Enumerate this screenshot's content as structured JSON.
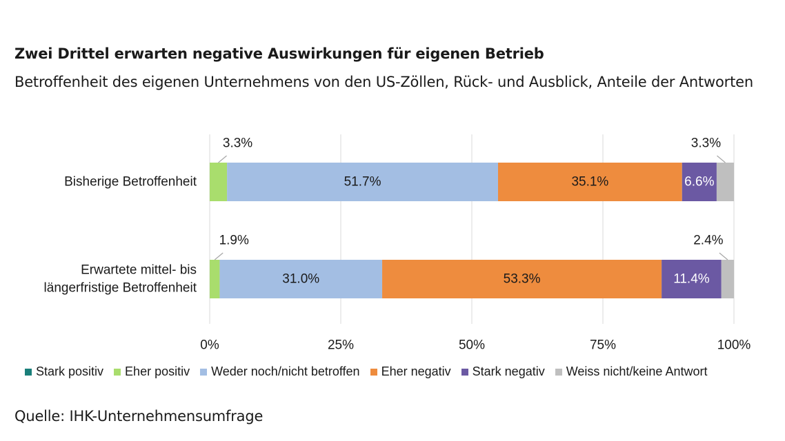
{
  "title": "Zwei Drittel erwarten negative Auswirkungen für eigenen Betrieb",
  "subtitle": "Betroffenheit des eigenen Unternehmens von den US-Zöllen, Rück- und Ausblick, Anteile der Antworten",
  "source": "Quelle: IHK-Unternehmensumfrage",
  "chart_data": {
    "type": "bar",
    "orientation": "horizontal",
    "stacked": true,
    "xlim": [
      0,
      100
    ],
    "x_ticks": [
      0,
      25,
      50,
      75,
      100
    ],
    "x_tick_labels": [
      "0%",
      "25%",
      "50%",
      "75%",
      "100%"
    ],
    "grid": true,
    "legend_position": "bottom",
    "categories": [
      [
        "Bisherige Betroffenheit"
      ],
      [
        "Erwartete mittel- bis",
        "längerfristige Betroffenheit"
      ]
    ],
    "series": [
      {
        "name": "Stark positiv",
        "color": "#1a7f7a",
        "values": [
          0,
          0
        ],
        "labels": [
          "",
          ""
        ],
        "label_position": "none"
      },
      {
        "name": "Eher positiv",
        "color": "#a9dd6d",
        "values": [
          3.3,
          1.9
        ],
        "labels": [
          "3.3%",
          "1.9%"
        ],
        "label_position": "callout-left"
      },
      {
        "name": "Weder noch/nicht betroffen",
        "color": "#a3bee3",
        "values": [
          51.7,
          31.0
        ],
        "labels": [
          "51.7%",
          "31.0%"
        ],
        "label_position": "inside"
      },
      {
        "name": "Eher negativ",
        "color": "#ee8c3e",
        "values": [
          35.1,
          53.3
        ],
        "labels": [
          "35.1%",
          "53.3%"
        ],
        "label_position": "inside"
      },
      {
        "name": "Stark negativ",
        "color": "#6b59a3",
        "values": [
          6.6,
          11.4
        ],
        "labels": [
          "6.6%",
          "11.4%"
        ],
        "label_position": "inside-white"
      },
      {
        "name": "Weiss nicht/keine Antwort",
        "color": "#bfbfbf",
        "values": [
          3.3,
          2.4
        ],
        "labels": [
          "3.3%",
          "2.4%"
        ],
        "label_position": "callout-right"
      }
    ]
  }
}
